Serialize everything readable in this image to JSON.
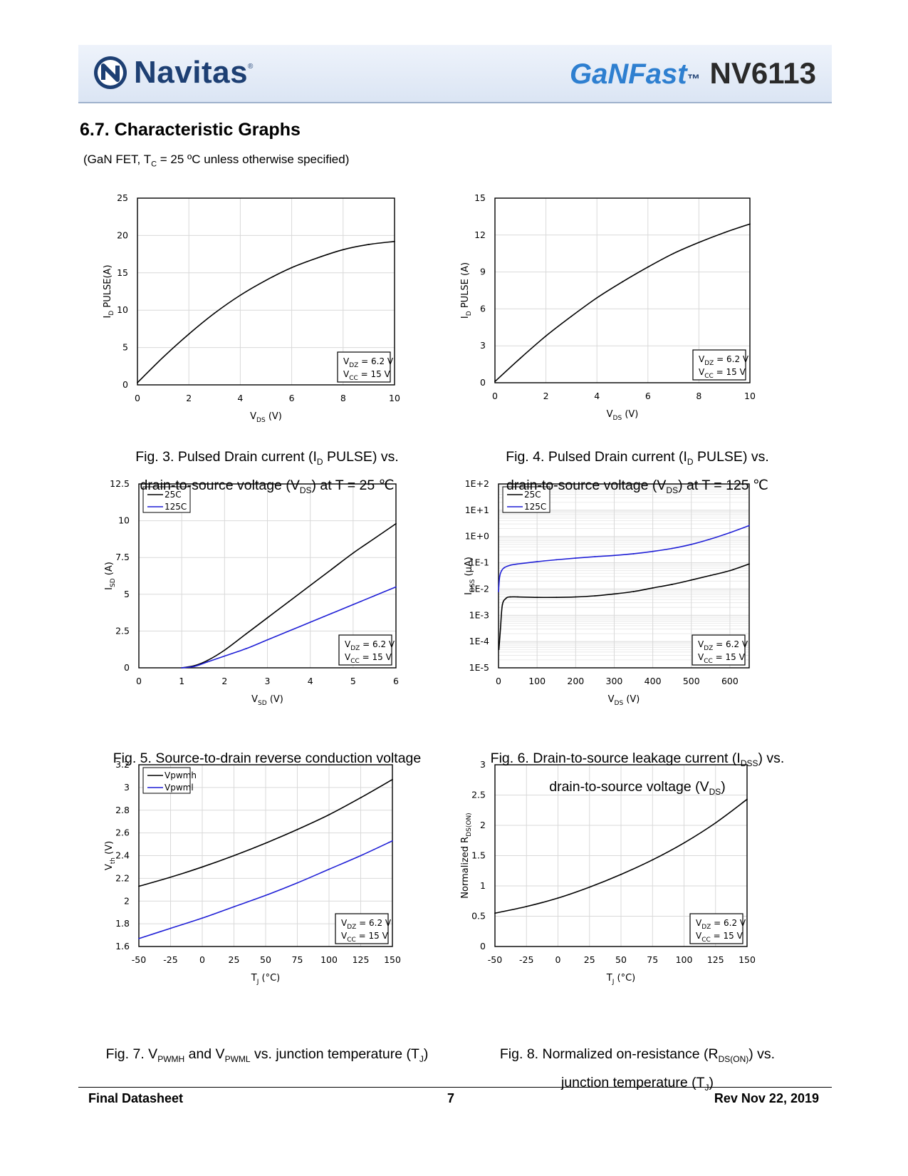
{
  "header": {
    "brand": "Navitas",
    "product_brand": "GaNFast",
    "trademark": "™",
    "part_number": "NV6113"
  },
  "section": {
    "title": "6.7. Characteristic Graphs",
    "conditions": "(GaN FET, T_C = 25 ºC unless otherwise specified)"
  },
  "captions": {
    "fig3": [
      "Fig. 3. Pulsed Drain current (I_D PULSE) vs.",
      "drain-to-source voltage (V_DS) at T = 25 ℃"
    ],
    "fig4": [
      "Fig. 4. Pulsed Drain current (I_D PULSE) vs.",
      "drain-to-source voltage (V_DS) at T = 125 ℃"
    ],
    "fig5": [
      "Fig. 5. Source-to-drain reverse conduction voltage"
    ],
    "fig6": [
      "Fig. 6. Drain-to-source leakage current (I_DSS) vs.",
      "drain-to-source voltage (V_DS)"
    ],
    "fig7": [
      "Fig. 7. V_PWMH and V_PWML vs. junction temperature (T_J)"
    ],
    "fig8": [
      "Fig. 8. Normalized on-resistance (R_DS(ON)) vs.",
      "junction temperature (T_J)"
    ]
  },
  "footer": {
    "left": "Final Datasheet",
    "page": "7",
    "right": "Rev Nov 22, 2019"
  },
  "colors": {
    "series_black": "#000000",
    "series_blue": "#1f1fd6",
    "grid": "#d9d9d9",
    "header_text": "#1d3f73",
    "ganfast": "#2e7fd0"
  },
  "chart_data": [
    {
      "id": "fig3",
      "type": "line",
      "xlabel": "V_DS (V)",
      "ylabel": "I_D PULSE(A)",
      "xlim": [
        0,
        10
      ],
      "ylim": [
        0,
        25
      ],
      "xticks": [
        0,
        2,
        4,
        6,
        8,
        10
      ],
      "yticks": [
        0,
        5,
        10,
        15,
        20,
        25
      ],
      "grid": true,
      "note": [
        "V_DZ = 6.2 V",
        "V_CC = 15 V"
      ],
      "series": [
        {
          "color": "#000000",
          "x": [
            0,
            1,
            2,
            3,
            4,
            5,
            6,
            7,
            8,
            9,
            10
          ],
          "y": [
            0.3,
            3.7,
            6.8,
            9.6,
            12.0,
            14.0,
            15.7,
            17.0,
            18.1,
            18.8,
            19.2
          ]
        }
      ]
    },
    {
      "id": "fig4",
      "type": "line",
      "xlabel": "V_DS (V)",
      "ylabel": "I_D PULSE (A)",
      "xlim": [
        0,
        10
      ],
      "ylim": [
        0,
        15
      ],
      "xticks": [
        0,
        2,
        4,
        6,
        8,
        10
      ],
      "yticks": [
        0,
        3,
        6,
        9,
        12,
        15
      ],
      "grid": true,
      "note": [
        "V_DZ = 6.2 V",
        "V_CC = 15 V"
      ],
      "series": [
        {
          "color": "#000000",
          "x": [
            0,
            1,
            2,
            3,
            4,
            5,
            6,
            7,
            8,
            9,
            10
          ],
          "y": [
            0.1,
            2.0,
            3.8,
            5.4,
            6.9,
            8.2,
            9.4,
            10.5,
            11.4,
            12.2,
            12.9
          ]
        }
      ]
    },
    {
      "id": "fig5",
      "type": "line",
      "xlabel": "V_SD (V)",
      "ylabel": "I_SD (A)",
      "xlim": [
        0,
        6
      ],
      "ylim": [
        0,
        12.5
      ],
      "xticks": [
        0,
        1,
        2,
        3,
        4,
        5,
        6
      ],
      "yticks": [
        0,
        2.5,
        5,
        7.5,
        10,
        12.5
      ],
      "grid": true,
      "note": [
        "V_DZ = 6.2 V",
        "V_CC = 15 V"
      ],
      "legend": [
        "25C",
        "125C"
      ],
      "series": [
        {
          "name": "25C",
          "color": "#000000",
          "x": [
            1.0,
            1.3,
            1.6,
            2.0,
            2.5,
            3.0,
            3.5,
            4.0,
            4.5,
            5.0,
            5.5,
            6.0
          ],
          "y": [
            0,
            0.15,
            0.5,
            1.2,
            2.3,
            3.4,
            4.5,
            5.6,
            6.7,
            7.8,
            8.8,
            9.8
          ]
        },
        {
          "name": "125C",
          "color": "#1f1fd6",
          "x": [
            1.0,
            1.3,
            1.6,
            2.0,
            2.5,
            3.0,
            3.5,
            4.0,
            4.5,
            5.0,
            5.5,
            6.0
          ],
          "y": [
            0,
            0.1,
            0.4,
            0.8,
            1.3,
            1.9,
            2.5,
            3.1,
            3.7,
            4.3,
            4.9,
            5.5
          ]
        }
      ]
    },
    {
      "id": "fig6",
      "type": "line",
      "yscale": "log",
      "xlabel": "V_DS (V)",
      "ylabel": "I_DSS (μA)",
      "xlim": [
        0,
        650
      ],
      "ylim": [
        1e-05,
        100
      ],
      "xticks": [
        0,
        100,
        200,
        300,
        400,
        500,
        600
      ],
      "yticks": [
        1e-05,
        0.0001,
        0.001,
        0.01,
        0.1,
        1,
        10,
        100
      ],
      "ytick_labels": [
        "1E-5",
        "1E-4",
        "1E-3",
        "1E-2",
        "1E-1",
        "1E+0",
        "1E+1",
        "1E+2"
      ],
      "grid": true,
      "note": [
        "V_DZ = 6.2 V",
        "V_CC = 15 V"
      ],
      "legend": [
        "25C",
        "125C"
      ],
      "series": [
        {
          "name": "25C",
          "color": "#000000",
          "x": [
            1,
            5,
            10,
            20,
            30,
            50,
            100,
            150,
            200,
            250,
            300,
            350,
            400,
            450,
            500,
            550,
            600,
            650
          ],
          "y": [
            5e-05,
            0.0003,
            0.0025,
            0.0045,
            0.005,
            0.005,
            0.0048,
            0.0048,
            0.005,
            0.0055,
            0.0065,
            0.008,
            0.011,
            0.015,
            0.022,
            0.033,
            0.05,
            0.09
          ]
        },
        {
          "name": "125C",
          "color": "#1f1fd6",
          "x": [
            0,
            3,
            8,
            15,
            30,
            50,
            100,
            150,
            200,
            250,
            300,
            350,
            400,
            450,
            500,
            550,
            600,
            650
          ],
          "y": [
            0.008,
            0.03,
            0.05,
            0.065,
            0.08,
            0.09,
            0.11,
            0.13,
            0.15,
            0.17,
            0.19,
            0.22,
            0.27,
            0.35,
            0.5,
            0.8,
            1.4,
            2.6
          ]
        }
      ]
    },
    {
      "id": "fig7",
      "type": "line",
      "xlabel": "T_J (°C)",
      "ylabel": "V_th (V)",
      "xlim": [
        -50,
        150
      ],
      "ylim": [
        1.6,
        3.2
      ],
      "xticks": [
        -50,
        -25,
        0,
        25,
        50,
        75,
        100,
        125,
        150
      ],
      "yticks": [
        1.6,
        1.8,
        2,
        2.2,
        2.4,
        2.6,
        2.8,
        3,
        3.2
      ],
      "grid": true,
      "note": [
        "V_DZ = 6.2 V",
        "V_CC = 15 V"
      ],
      "legend": [
        "Vpwmh",
        "Vpwml"
      ],
      "series": [
        {
          "name": "Vpwmh",
          "color": "#000000",
          "x": [
            -50,
            -25,
            0,
            25,
            50,
            75,
            100,
            125,
            150
          ],
          "y": [
            2.13,
            2.21,
            2.3,
            2.4,
            2.51,
            2.63,
            2.76,
            2.91,
            3.07
          ]
        },
        {
          "name": "Vpwml",
          "color": "#1f1fd6",
          "x": [
            -50,
            -25,
            0,
            25,
            50,
            75,
            100,
            125,
            150
          ],
          "y": [
            1.67,
            1.76,
            1.85,
            1.95,
            2.05,
            2.16,
            2.28,
            2.4,
            2.53
          ]
        }
      ]
    },
    {
      "id": "fig8",
      "type": "line",
      "xlabel": "T_J (°C)",
      "ylabel": "Normalized R_DS(ON)",
      "xlim": [
        -50,
        150
      ],
      "ylim": [
        0,
        3
      ],
      "xticks": [
        -50,
        -25,
        0,
        25,
        50,
        75,
        100,
        125,
        150
      ],
      "yticks": [
        0,
        0.5,
        1,
        1.5,
        2,
        2.5,
        3
      ],
      "ytick_labels": [
        "0",
        "0.5",
        "1",
        "1.5",
        "2",
        "2.5",
        "3"
      ],
      "grid": true,
      "note": [
        "V_DZ = 6.2 V",
        "V_CC = 15 V"
      ],
      "series": [
        {
          "color": "#000000",
          "x": [
            -50,
            -25,
            0,
            25,
            50,
            75,
            100,
            125,
            150
          ],
          "y": [
            0.55,
            0.66,
            0.8,
            0.98,
            1.19,
            1.43,
            1.71,
            2.04,
            2.43
          ]
        }
      ]
    }
  ]
}
